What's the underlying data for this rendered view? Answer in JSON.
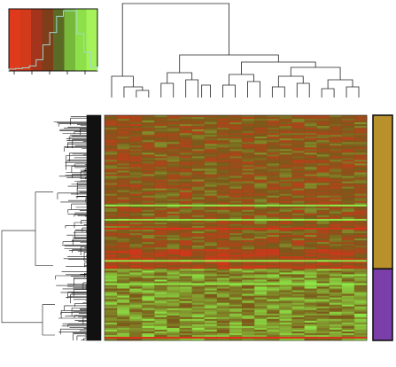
{
  "chart_data": {
    "type": "heatmap",
    "title": "",
    "xlabel": "",
    "ylabel": "",
    "colorscale": {
      "low": "#8ef04a",
      "mid": "#7a5a1a",
      "high": "#e0301a"
    },
    "n_columns": 21,
    "n_rows": 126,
    "row_cluster_boundary": 0.682,
    "column_groups": [
      {
        "columns": 2,
        "profile": [
          0.0,
          0.05
        ]
      },
      {
        "columns": 2,
        "profile": [
          0.1,
          -0.05
        ]
      },
      {
        "columns": 5,
        "profile": [
          -0.05,
          0.0,
          0.05,
          -0.05,
          0.0
        ]
      },
      {
        "columns": 5,
        "profile": [
          0.05,
          0.0,
          0.05,
          -0.05,
          0.0
        ]
      },
      {
        "columns": 7,
        "profile": [
          0.0,
          0.05,
          -0.05,
          0.0,
          0.05,
          0.0,
          -0.05
        ]
      }
    ],
    "row_side_colors": [
      {
        "group": 1,
        "color": "#b8902c",
        "fraction": 0.682
      },
      {
        "group": 2,
        "color": "#7a3fa8",
        "fraction": 0.318
      }
    ],
    "color_key": {
      "bands": [
        "#e03a1c",
        "#d13a1a",
        "#a4341b",
        "#7f3d19",
        "#5b6a24",
        "#78b83a",
        "#8ee04a",
        "#a6f25a"
      ],
      "histogram_profile": [
        0.03,
        0.04,
        0.05,
        0.08,
        0.18,
        0.42,
        0.62,
        0.88,
        0.97,
        0.97,
        0.6,
        0.3,
        0.06
      ]
    }
  }
}
